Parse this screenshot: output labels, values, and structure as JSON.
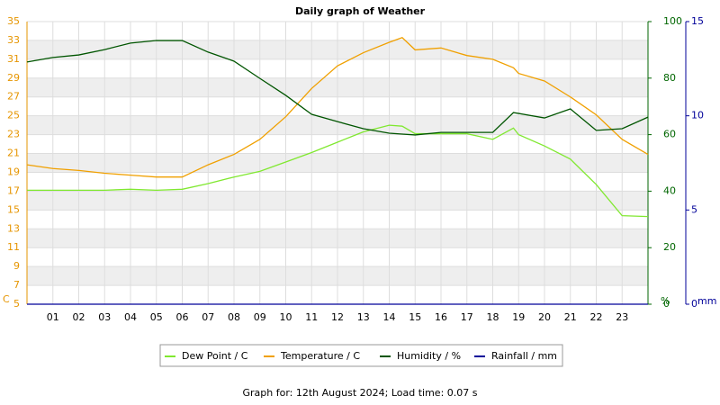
{
  "chart_data": {
    "type": "line",
    "title": "Daily graph of Weather",
    "x": [
      0,
      1,
      2,
      3,
      4,
      5,
      6,
      7,
      8,
      9,
      10,
      11,
      12,
      13,
      14,
      14.5,
      15,
      16,
      17,
      18,
      18.8,
      19,
      20,
      21,
      22,
      23,
      24
    ],
    "xlim": [
      0,
      24
    ],
    "xticks": [
      {
        "value": 1,
        "label": "01"
      },
      {
        "value": 2,
        "label": "02"
      },
      {
        "value": 3,
        "label": "03"
      },
      {
        "value": 4,
        "label": "04"
      },
      {
        "value": 5,
        "label": "05"
      },
      {
        "value": 6,
        "label": "06"
      },
      {
        "value": 7,
        "label": "07"
      },
      {
        "value": 8,
        "label": "08"
      },
      {
        "value": 9,
        "label": "09"
      },
      {
        "value": 10,
        "label": "10"
      },
      {
        "value": 11,
        "label": "11"
      },
      {
        "value": 12,
        "label": "12"
      },
      {
        "value": 13,
        "label": "13"
      },
      {
        "value": 14,
        "label": "14"
      },
      {
        "value": 15,
        "label": "15"
      },
      {
        "value": 16,
        "label": "16"
      },
      {
        "value": 17,
        "label": "17"
      },
      {
        "value": 18,
        "label": "18"
      },
      {
        "value": 19,
        "label": "19"
      },
      {
        "value": 20,
        "label": "20"
      },
      {
        "value": 21,
        "label": "21"
      },
      {
        "value": 22,
        "label": "22"
      },
      {
        "value": 23,
        "label": "23"
      }
    ],
    "ylabel": "C",
    "ylim": [
      5,
      35
    ],
    "yticks": [
      5,
      7,
      9,
      11,
      13,
      15,
      17,
      19,
      21,
      23,
      25,
      27,
      29,
      31,
      33,
      35
    ],
    "y2label": "%",
    "y2lim": [
      0,
      100
    ],
    "y2ticks": [
      0,
      20,
      40,
      60,
      80,
      100
    ],
    "y3label": "mm",
    "y3lim": [
      0,
      15
    ],
    "y3ticks": [
      0,
      5,
      10,
      15
    ],
    "series": [
      {
        "name": "Dew Point / C",
        "color": "#80e830",
        "values": [
          17.1,
          17.1,
          17.1,
          17.1,
          17.2,
          17.1,
          17.2,
          17.8,
          18.5,
          19.1,
          20.1,
          21.1,
          22.2,
          23.3,
          24.0,
          23.9,
          23.1,
          23.1,
          23.1,
          22.5,
          23.7,
          23.0,
          21.8,
          20.4,
          17.7,
          14.4,
          14.3
        ]
      },
      {
        "name": "Temperature / C",
        "color": "#f0a000",
        "values": [
          19.8,
          19.4,
          19.2,
          18.9,
          18.7,
          18.5,
          18.5,
          19.8,
          20.9,
          22.5,
          24.9,
          27.9,
          30.3,
          31.7,
          32.8,
          33.3,
          32.0,
          32.2,
          31.4,
          31.0,
          30.1,
          29.5,
          28.7,
          27.0,
          25.1,
          22.5,
          20.9
        ]
      },
      {
        "name": "Humidity / %",
        "color": "#005500",
        "axis": "y2",
        "values": [
          85.7,
          87.3,
          88.2,
          90.1,
          92.4,
          93.3,
          93.3,
          89.2,
          86.0,
          79.9,
          73.9,
          67.2,
          64.6,
          62.1,
          60.5,
          60.2,
          59.9,
          60.8,
          60.8,
          60.8,
          67.8,
          67.5,
          65.9,
          69.1,
          61.5,
          62.1,
          66.2
        ]
      },
      {
        "name": "Rainfall / mm",
        "color": "#000099",
        "axis": "y3",
        "values": [
          0,
          0,
          0,
          0,
          0,
          0,
          0,
          0,
          0,
          0,
          0,
          0,
          0,
          0,
          0,
          0,
          0,
          0,
          0,
          0,
          0,
          0,
          0,
          0,
          0,
          0,
          0
        ]
      }
    ],
    "footer": "Graph for: 12th August 2024; Load time: 0.07 s"
  }
}
